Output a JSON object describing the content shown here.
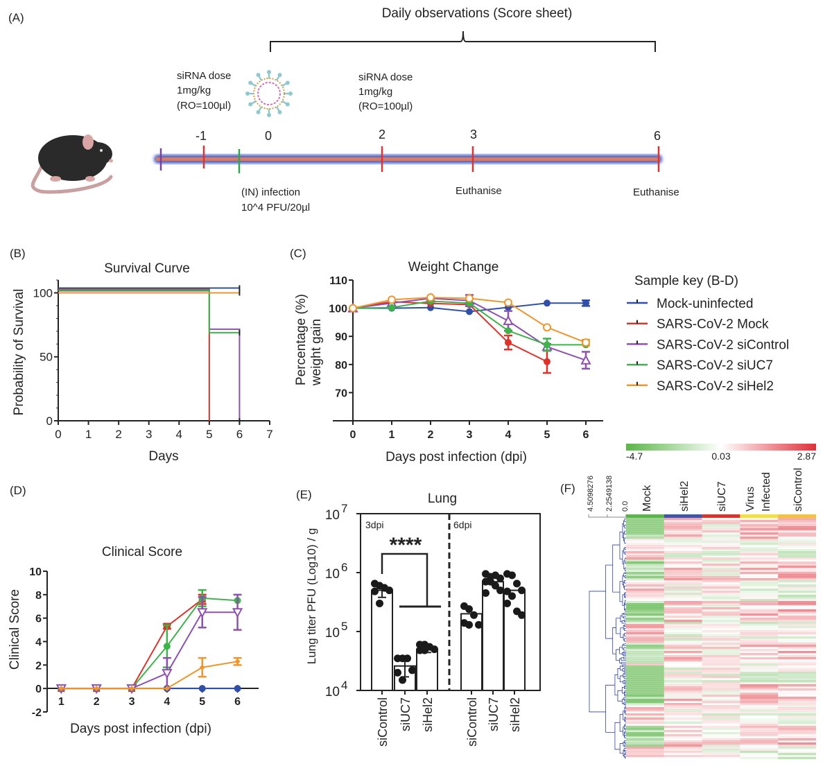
{
  "panel_a": {
    "label": "(A)",
    "bracket_title": "Daily observations (Score sheet)",
    "dose1": [
      "siRNA dose",
      "1mg/kg",
      "(RO=100µl)"
    ],
    "dose2": [
      "siRNA dose",
      "1mg/kg",
      "(RO=100µl)"
    ],
    "day_labels": [
      "-1",
      "0",
      "2",
      "3",
      "6"
    ],
    "infection": [
      "(IN) infection",
      "10^4 PFU/20µl"
    ],
    "euthanise_3": "Euthanise",
    "euthanise_6": "Euthanise",
    "icons": [
      "mouse-icon",
      "virus-icon"
    ],
    "timeline_colors": {
      "bar": "#3b4fb8",
      "core": "#e07a5f",
      "start": "#7b3fa0",
      "dose": "#e03030",
      "infection": "#2aa84a"
    }
  },
  "legend": {
    "title": "Sample key (B-D)",
    "items": [
      {
        "label": "Mock-uninfected",
        "color": "#2f4fa8"
      },
      {
        "label": "SARS-CoV-2 Mock",
        "color": "#e0302a"
      },
      {
        "label": "SARS-CoV-2 siControl",
        "color": "#8e4fb0"
      },
      {
        "label": "SARS-CoV-2 siUC7",
        "color": "#3cb44a"
      },
      {
        "label": "SARS-CoV-2 siHel2",
        "color": "#f0952a"
      }
    ]
  },
  "chart_data": [
    {
      "panel": "(B)",
      "type": "line",
      "title": "Survival Curve",
      "xlabel": "Days",
      "ylabel": "Probability of Survival",
      "xlim": [
        0,
        7
      ],
      "ylim": [
        0,
        110
      ],
      "xticks": [
        "0",
        "1",
        "2",
        "3",
        "4",
        "5",
        "6",
        "7"
      ],
      "yticks": [
        "0",
        "50",
        "100"
      ],
      "step": true,
      "series": [
        {
          "name": "Mock-uninfected",
          "x": [
            0,
            6
          ],
          "y": [
            100,
            100
          ]
        },
        {
          "name": "SARS-CoV-2 Mock",
          "x": [
            0,
            5
          ],
          "y": [
            100,
            0
          ]
        },
        {
          "name": "SARS-CoV-2 siControl",
          "x": [
            0,
            5,
            6
          ],
          "y": [
            100,
            70,
            0
          ]
        },
        {
          "name": "SARS-CoV-2 siUC7",
          "x": [
            0,
            5,
            6
          ],
          "y": [
            100,
            66.7,
            66.7
          ]
        },
        {
          "name": "SARS-CoV-2 siHel2",
          "x": [
            0,
            6
          ],
          "y": [
            100,
            100
          ]
        }
      ]
    },
    {
      "panel": "(C)",
      "type": "line",
      "title": "Weight Change",
      "xlabel": "Days post infection (dpi)",
      "ylabel": [
        "Percentage (%)",
        "weight gain"
      ],
      "xlim": [
        0,
        6
      ],
      "ylim": [
        60,
        110
      ],
      "xticks": [
        "0",
        "1",
        "2",
        "3",
        "4",
        "5",
        "6"
      ],
      "yticks": [
        "70",
        "80",
        "90",
        "100",
        "110"
      ],
      "series": [
        {
          "name": "Mock-uninfected",
          "marker": "filled-circle",
          "x": [
            0,
            1,
            2,
            3,
            4,
            5,
            6
          ],
          "y": [
            100,
            100,
            100.2,
            98.8,
            100.3,
            101.8,
            101.8
          ],
          "err": [
            0,
            0,
            0,
            0,
            0,
            0,
            1
          ]
        },
        {
          "name": "SARS-CoV-2 Mock",
          "marker": "filled-circle",
          "x": [
            0,
            1,
            2,
            3,
            4,
            5
          ],
          "y": [
            100,
            102.3,
            101.7,
            101.3,
            87.8,
            81
          ],
          "err": [
            0,
            0,
            0,
            0,
            2.5,
            4
          ]
        },
        {
          "name": "SARS-CoV-2 siControl",
          "marker": "open-triangle",
          "x": [
            0,
            1,
            2,
            3,
            4,
            5,
            6
          ],
          "y": [
            100,
            101.8,
            103.5,
            102.7,
            95.5,
            86.3,
            81.5
          ],
          "err": [
            0,
            0,
            0,
            2,
            3.5,
            1,
            3
          ]
        },
        {
          "name": "SARS-CoV-2 siUC7",
          "marker": "filled-circle",
          "x": [
            0,
            1,
            2,
            3,
            4,
            5,
            6
          ],
          "y": [
            100,
            100.2,
            102.5,
            101.8,
            92,
            87,
            87
          ],
          "err": [
            0,
            0,
            0,
            0,
            0,
            2.2,
            0
          ]
        },
        {
          "name": "SARS-CoV-2 siHel2",
          "marker": "open-circle",
          "x": [
            0,
            1,
            2,
            3,
            4,
            5,
            6
          ],
          "y": [
            100,
            103,
            103.8,
            103.5,
            102,
            93.2,
            87.8
          ],
          "err": [
            0,
            0,
            0,
            0,
            0,
            0,
            1
          ]
        }
      ]
    },
    {
      "panel": "(D)",
      "type": "line",
      "title": "Clinical Score",
      "xlabel": "Days post infection (dpi)",
      "ylabel": "Clinical Score",
      "xlim": [
        0.6,
        6.5
      ],
      "ylim": [
        -2,
        10
      ],
      "xticks": [
        "1",
        "2",
        "3",
        "4",
        "5",
        "6"
      ],
      "yticks": [
        "-2",
        "0",
        "2",
        "4",
        "6",
        "8",
        "10"
      ],
      "series": [
        {
          "name": "Mock-uninfected",
          "marker": "filled-circle",
          "x": [
            1,
            2,
            3,
            4,
            5,
            6
          ],
          "y": [
            0,
            0,
            0,
            0,
            0,
            0
          ],
          "err": [
            0,
            0,
            0,
            0,
            0,
            0
          ]
        },
        {
          "name": "SARS-CoV-2 Mock",
          "marker": "filled-square",
          "x": [
            1,
            2,
            3,
            4,
            5
          ],
          "y": [
            0,
            0,
            0,
            5.3,
            7.6
          ],
          "err": [
            0,
            0,
            0,
            0.2,
            0.4
          ]
        },
        {
          "name": "SARS-CoV-2 siUC7",
          "marker": "filled-circle",
          "x": [
            1,
            2,
            3,
            4,
            5,
            6
          ],
          "y": [
            0,
            0,
            0,
            3.6,
            7.7,
            7.5
          ],
          "err": [
            0,
            0,
            0,
            1.8,
            0.7,
            0
          ]
        },
        {
          "name": "SARS-CoV-2 siControl",
          "marker": "open-down-triangle",
          "x": [
            1,
            2,
            3,
            4,
            5,
            6
          ],
          "y": [
            0,
            0,
            0,
            1.3,
            6.5,
            6.5
          ],
          "err": [
            0,
            0,
            0,
            1.3,
            1.3,
            1.5
          ]
        },
        {
          "name": "SARS-CoV-2 siHel2",
          "marker": "filled-diamond",
          "x": [
            1,
            2,
            3,
            4,
            5,
            6
          ],
          "y": [
            0,
            0,
            0,
            0,
            1.8,
            2.3
          ],
          "err": [
            0,
            0,
            0,
            0,
            0.8,
            0.3
          ]
        }
      ]
    },
    {
      "panel": "(E)",
      "type": "bar",
      "title": "Lung",
      "ylabel": "Lung titer PFU (Log10) / g",
      "yscale": "log",
      "ylim": [
        10000,
        10000000
      ],
      "yticks": [
        {
          "base": "10",
          "exp": "4"
        },
        {
          "base": "10",
          "exp": "5"
        },
        {
          "base": "10",
          "exp": "6"
        },
        {
          "base": "10",
          "exp": "7"
        }
      ],
      "groups": [
        {
          "label": "3dpi",
          "categories": [
            "siControl",
            "siUC7",
            "siHel2"
          ],
          "values": [
            500000,
            26000,
            50000
          ],
          "points": [
            [
              650000,
              600000,
              550000,
              500000,
              480000,
              300000
            ],
            [
              35000,
              35000,
              35000,
              22000,
              20000,
              15000
            ],
            [
              60000,
              60000,
              55000,
              50000,
              48000,
              48000
            ]
          ],
          "err": [
            120000,
            9000,
            6000
          ]
        },
        {
          "label": "6dpi",
          "categories": [
            "siControl",
            "siUC7",
            "siHel2"
          ],
          "values": [
            200000,
            700000,
            500000
          ],
          "points": [
            [
              270000,
              240000,
              190000,
              130000,
              140000,
              130000
            ],
            [
              950000,
              850000,
              900000,
              800000,
              700000,
              700000,
              600000,
              500000,
              450000
            ],
            [
              950000,
              900000,
              650000,
              500000,
              480000,
              400000,
              220000,
              190000,
              300000
            ]
          ],
          "err": [
            0,
            0,
            0
          ]
        }
      ],
      "significance": "****"
    },
    {
      "panel": "(F)",
      "type": "heatmap",
      "columns": [
        "Mock",
        "siHel2",
        "siUC7",
        [
          "Virus",
          "Infected"
        ],
        "siControl"
      ],
      "column_colors": [
        "#5bb548",
        "#3b55b0",
        "#e0302a",
        "#f5e03a",
        "#f5c23a"
      ],
      "colorbar": {
        "min": "-4.7",
        "mid": "0.03",
        "max": "2.87",
        "colors": [
          "#5bb548",
          "#ffffff",
          "#e0303a"
        ]
      },
      "dendrogram_scale": [
        "4.5098276",
        "2.2549138",
        "0.0"
      ]
    }
  ]
}
